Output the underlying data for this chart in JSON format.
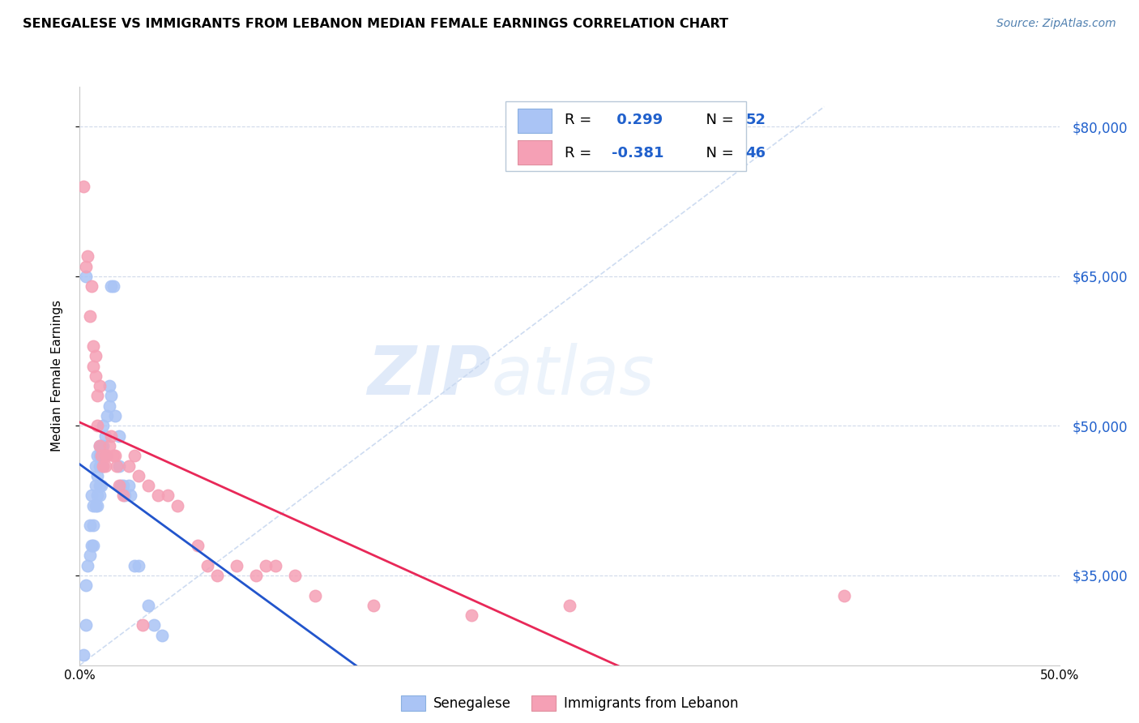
{
  "title": "SENEGALESE VS IMMIGRANTS FROM LEBANON MEDIAN FEMALE EARNINGS CORRELATION CHART",
  "source": "Source: ZipAtlas.com",
  "ylabel": "Median Female Earnings",
  "xlim": [
    0.0,
    0.5
  ],
  "ylim": [
    26000,
    84000
  ],
  "yticks": [
    35000,
    50000,
    65000,
    80000
  ],
  "ytick_labels": [
    "$35,000",
    "$50,000",
    "$65,000",
    "$80,000"
  ],
  "xticks": [
    0.0,
    0.1,
    0.2,
    0.3,
    0.4,
    0.5
  ],
  "xtick_labels": [
    "0.0%",
    "",
    "",
    "",
    "",
    "50.0%"
  ],
  "legend1_R": " 0.299",
  "legend1_N": "52",
  "legend2_R": "-0.381",
  "legend2_N": "46",
  "blue_color": "#aac4f5",
  "pink_color": "#f5a0b5",
  "blue_line_color": "#2255cc",
  "pink_line_color": "#e82858",
  "diagonal_color": "#c8d8f0",
  "watermark_zip": "ZIP",
  "watermark_atlas": "atlas",
  "senegalese_x": [
    0.002,
    0.003,
    0.003,
    0.004,
    0.005,
    0.005,
    0.006,
    0.006,
    0.007,
    0.007,
    0.007,
    0.008,
    0.008,
    0.008,
    0.009,
    0.009,
    0.009,
    0.009,
    0.01,
    0.01,
    0.01,
    0.01,
    0.01,
    0.011,
    0.011,
    0.011,
    0.011,
    0.012,
    0.012,
    0.012,
    0.013,
    0.013,
    0.014,
    0.015,
    0.015,
    0.016,
    0.016,
    0.017,
    0.018,
    0.02,
    0.021,
    0.022,
    0.023,
    0.025,
    0.026,
    0.028,
    0.03,
    0.035,
    0.038,
    0.042,
    0.003,
    0.02
  ],
  "senegalese_y": [
    27000,
    30000,
    34000,
    36000,
    37000,
    40000,
    38000,
    43000,
    38000,
    40000,
    42000,
    42000,
    44000,
    46000,
    42000,
    43000,
    45000,
    47000,
    43000,
    44000,
    46000,
    47000,
    48000,
    44000,
    46000,
    47000,
    48000,
    46000,
    48000,
    50000,
    47000,
    49000,
    51000,
    52000,
    54000,
    53000,
    64000,
    64000,
    51000,
    49000,
    44000,
    44000,
    43000,
    44000,
    43000,
    36000,
    36000,
    32000,
    30000,
    29000,
    65000,
    46000
  ],
  "lebanon_x": [
    0.002,
    0.003,
    0.004,
    0.005,
    0.006,
    0.007,
    0.007,
    0.008,
    0.008,
    0.009,
    0.009,
    0.01,
    0.01,
    0.011,
    0.012,
    0.013,
    0.013,
    0.014,
    0.015,
    0.016,
    0.017,
    0.018,
    0.019,
    0.02,
    0.022,
    0.025,
    0.028,
    0.03,
    0.035,
    0.04,
    0.045,
    0.05,
    0.06,
    0.065,
    0.07,
    0.08,
    0.09,
    0.095,
    0.1,
    0.11,
    0.12,
    0.15,
    0.2,
    0.25,
    0.39,
    0.032
  ],
  "lebanon_y": [
    74000,
    66000,
    67000,
    61000,
    64000,
    56000,
    58000,
    55000,
    57000,
    50000,
    53000,
    48000,
    54000,
    47000,
    46000,
    47000,
    46000,
    47000,
    48000,
    49000,
    47000,
    47000,
    46000,
    44000,
    43000,
    46000,
    47000,
    45000,
    44000,
    43000,
    43000,
    42000,
    38000,
    36000,
    35000,
    36000,
    35000,
    36000,
    36000,
    35000,
    33000,
    32000,
    31000,
    32000,
    33000,
    30000
  ]
}
